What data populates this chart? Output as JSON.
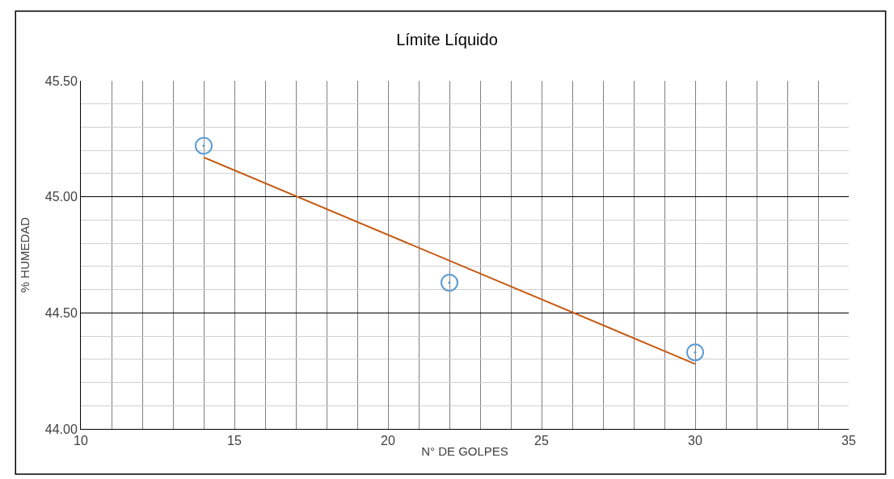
{
  "chart_data": {
    "type": "scatter",
    "title": "Límite Líquido",
    "xlabel": "N° DE GOLPES",
    "ylabel": "% HUMEDAD",
    "x": [
      14,
      22,
      30
    ],
    "series": [
      {
        "color": "#5b9bd5",
        "marker": "circle",
        "values": [
          45.22,
          44.63,
          44.33
        ]
      },
      {
        "type": "line",
        "color": "#c55a11",
        "x": [
          14,
          30
        ],
        "values": [
          45.17,
          44.28
        ]
      }
    ],
    "xlim": [
      10,
      35
    ],
    "xticks": [
      10,
      15,
      20,
      25,
      30,
      35
    ],
    "ylim": [
      44,
      45.5
    ],
    "yticks": [
      {
        "value": 44,
        "label": "44.00"
      },
      {
        "value": 44.5,
        "label": "44.50"
      },
      {
        "value": 45,
        "label": "45.00"
      },
      {
        "value": 45.5,
        "label": "45.50"
      }
    ],
    "grid": true,
    "legend": false
  }
}
